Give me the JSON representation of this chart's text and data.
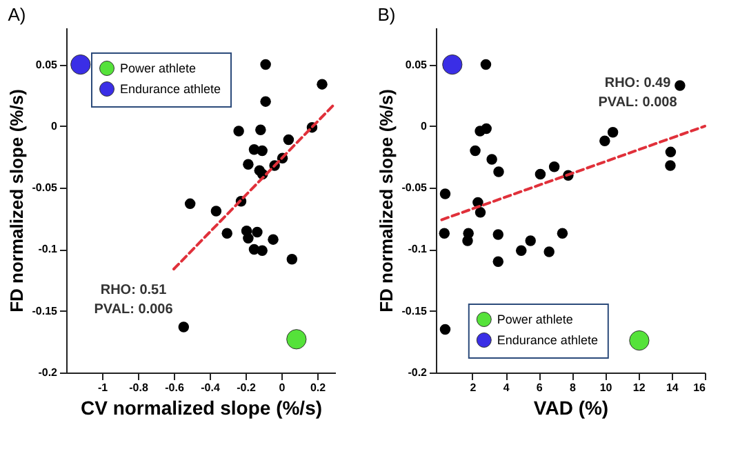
{
  "chart_data": [
    {
      "type": "scatter",
      "title": "A)",
      "xlabel": "CV normalized slope (%/s)",
      "ylabel": "FD normalized slope (%/s)",
      "xlim": [
        -1.2,
        0.3
      ],
      "ylim": [
        -0.2,
        0.08
      ],
      "xticks": [
        -1,
        -0.8,
        -0.6,
        -0.4,
        -0.2,
        0,
        0.2
      ],
      "yticks": [
        -0.2,
        -0.15,
        -0.1,
        -0.05,
        0,
        0.05
      ],
      "grid": false,
      "legend": "top left",
      "marker": "circle",
      "annotations": [
        "RHO: 0.51",
        "PVAL: 0.006"
      ],
      "series": [
        {
          "name": "Power athlete",
          "color": "#55e23a",
          "x": [
            0.084
          ],
          "values": [
            -0.173
          ]
        },
        {
          "name": "Endurance athlete",
          "color": "#3a2ee6",
          "x": [
            -1.12
          ],
          "values": [
            0.05
          ]
        },
        {
          "color": "#000000",
          "x": [
            -0.088,
            0.227,
            -0.088,
            0.171,
            -0.238,
            -0.116,
            0.04,
            -0.152,
            -0.107,
            0.006,
            -0.185,
            -0.122,
            -0.105,
            -0.038,
            -0.509,
            -0.225,
            -0.364,
            -0.303,
            -0.194,
            -0.135,
            -0.185,
            -0.046,
            -0.152,
            -0.107,
            0.059,
            -0.545
          ],
          "values": [
            0.05,
            0.034,
            0.02,
            -0.001,
            -0.004,
            -0.003,
            -0.011,
            -0.019,
            -0.02,
            -0.026,
            -0.031,
            -0.036,
            -0.039,
            -0.032,
            -0.063,
            -0.061,
            -0.069,
            -0.087,
            -0.085,
            -0.086,
            -0.091,
            -0.092,
            -0.1,
            -0.101,
            -0.108,
            -0.163
          ]
        },
        {
          "type": "line",
          "color": "#e0303a",
          "line_style": "dashed",
          "marker": "none",
          "x": [
            -0.6,
            0.29
          ],
          "values": [
            -0.116,
            0.017
          ]
        }
      ]
    },
    {
      "type": "scatter",
      "title": "B)",
      "xlabel": "VAD (%)",
      "ylabel": "FD normalized slope (%/s)",
      "xlim": [
        -0.2,
        16
      ],
      "ylim": [
        -0.2,
        0.08
      ],
      "xticks": [
        2,
        4,
        6,
        8,
        10,
        12,
        14,
        16
      ],
      "yticks": [
        -0.2,
        -0.15,
        -0.1,
        -0.05,
        0,
        0.05
      ],
      "grid": false,
      "legend": "bottom",
      "marker": "circle",
      "annotations": [
        "RHO: 0.49",
        "PVAL: 0.008"
      ],
      "series": [
        {
          "name": "Power athlete",
          "color": "#55e23a",
          "x": [
            12.05
          ],
          "values": [
            -0.174
          ]
        },
        {
          "name": "Endurance athlete",
          "color": "#3a2ee6",
          "x": [
            0.79
          ],
          "values": [
            0.05
          ]
        },
        {
          "color": "#000000",
          "x": [
            2.81,
            14.5,
            2.84,
            2.46,
            10.46,
            9.97,
            2.17,
            3.17,
            13.94,
            13.92,
            3.58,
            6.93,
            6.09,
            7.77,
            0.36,
            2.33,
            2.48,
            0.31,
            1.76,
            1.71,
            3.55,
            7.42,
            5.5,
            4.94,
            6.62,
            3.55,
            0.36
          ],
          "values": [
            0.05,
            0.033,
            -0.002,
            -0.004,
            -0.005,
            -0.012,
            -0.02,
            -0.027,
            -0.021,
            -0.032,
            -0.037,
            -0.033,
            -0.039,
            -0.04,
            -0.055,
            -0.062,
            -0.07,
            -0.087,
            -0.087,
            -0.093,
            -0.088,
            -0.087,
            -0.093,
            -0.101,
            -0.102,
            -0.11,
            -0.165
          ]
        },
        {
          "type": "line",
          "color": "#e0303a",
          "line_style": "dashed",
          "marker": "none",
          "x": [
            0.15,
            16
          ],
          "values": [
            -0.076,
            0.0
          ]
        }
      ]
    }
  ]
}
